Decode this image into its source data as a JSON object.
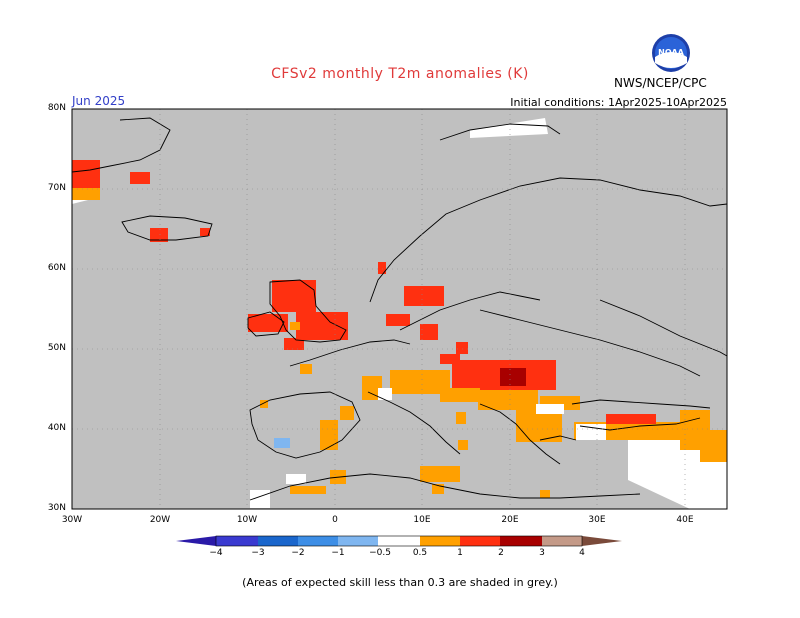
{
  "header": {
    "title": "CFSv2 monthly T2m anomalies (K)",
    "period": "Jun 2025",
    "initial_conditions": "Initial conditions: 1Apr2025-10Apr2025",
    "agency": "NWS/NCEP/CPC",
    "logo_text": "NOAA"
  },
  "map": {
    "ocean_color": "#c0c0c0",
    "lat_ticks": [
      "80N",
      "70N",
      "60N",
      "50N",
      "40N",
      "30N"
    ],
    "lon_ticks": [
      "30W",
      "20W",
      "10W",
      "0",
      "10E",
      "20E",
      "30E",
      "40E"
    ]
  },
  "colorbar": {
    "labels": [
      "−4",
      "−3",
      "−2",
      "−1",
      "−0.5",
      "0.5",
      "1",
      "2",
      "3",
      "4"
    ],
    "colors": [
      "#2a1aa8",
      "#3a3ad0",
      "#1a66cc",
      "#3d8ee6",
      "#7fb6f0",
      "#ffffff",
      "#ffa000",
      "#ff7010",
      "#ff3010",
      "#a80000",
      "#c49a88",
      "#7a4a3a"
    ]
  },
  "footnote": "(Areas of expected skill less than 0.3 are shaded in grey.)"
}
